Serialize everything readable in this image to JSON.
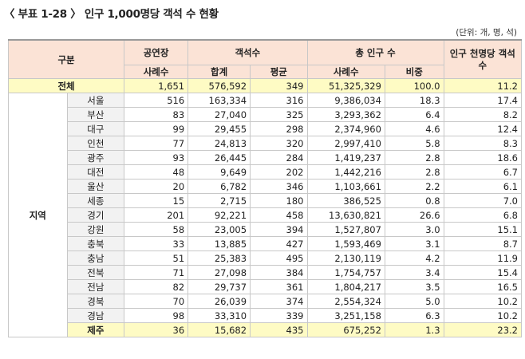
{
  "title": "〈 부표 1-28 〉 인구 1,000명당 객석 수 현황",
  "unit_note": "(단위: 개, 명, 석)",
  "headers": {
    "category": "구분",
    "venues": "공연장",
    "seats": "객석수",
    "population": "총 인구 수",
    "per_thousand": "인구 천명당 객석수",
    "cases": "사례수",
    "total": "합계",
    "average": "평균",
    "pop_cases": "사례수",
    "share": "비중"
  },
  "total_row": {
    "label": "전체",
    "venues": "1,651",
    "seats_total": "576,592",
    "seats_avg": "349",
    "population": "51,325,329",
    "share": "100.0",
    "per_thousand": "11.2"
  },
  "region_group_label": "지역",
  "regions": [
    {
      "name": "서울",
      "venues": "516",
      "seats_total": "163,334",
      "seats_avg": "316",
      "population": "9,386,034",
      "share": "18.3",
      "per_thousand": "17.4"
    },
    {
      "name": "부산",
      "venues": "83",
      "seats_total": "27,040",
      "seats_avg": "325",
      "population": "3,293,362",
      "share": "6.4",
      "per_thousand": "8.2"
    },
    {
      "name": "대구",
      "venues": "99",
      "seats_total": "29,455",
      "seats_avg": "298",
      "population": "2,374,960",
      "share": "4.6",
      "per_thousand": "12.4"
    },
    {
      "name": "인천",
      "venues": "77",
      "seats_total": "24,813",
      "seats_avg": "320",
      "population": "2,997,410",
      "share": "5.8",
      "per_thousand": "8.3"
    },
    {
      "name": "광주",
      "venues": "93",
      "seats_total": "26,445",
      "seats_avg": "284",
      "population": "1,419,237",
      "share": "2.8",
      "per_thousand": "18.6"
    },
    {
      "name": "대전",
      "venues": "48",
      "seats_total": "9,649",
      "seats_avg": "202",
      "population": "1,442,216",
      "share": "2.8",
      "per_thousand": "6.7"
    },
    {
      "name": "울산",
      "venues": "20",
      "seats_total": "6,782",
      "seats_avg": "346",
      "population": "1,103,661",
      "share": "2.2",
      "per_thousand": "6.1"
    },
    {
      "name": "세종",
      "venues": "15",
      "seats_total": "2,715",
      "seats_avg": "180",
      "population": "386,525",
      "share": "0.8",
      "per_thousand": "7.0"
    },
    {
      "name": "경기",
      "venues": "201",
      "seats_total": "92,221",
      "seats_avg": "458",
      "population": "13,630,821",
      "share": "26.6",
      "per_thousand": "6.8"
    },
    {
      "name": "강원",
      "venues": "58",
      "seats_total": "23,005",
      "seats_avg": "394",
      "population": "1,527,807",
      "share": "3.0",
      "per_thousand": "15.1"
    },
    {
      "name": "충북",
      "venues": "33",
      "seats_total": "13,885",
      "seats_avg": "427",
      "population": "1,593,469",
      "share": "3.1",
      "per_thousand": "8.7"
    },
    {
      "name": "충남",
      "venues": "51",
      "seats_total": "25,383",
      "seats_avg": "495",
      "population": "2,130,119",
      "share": "4.2",
      "per_thousand": "11.9"
    },
    {
      "name": "전북",
      "venues": "71",
      "seats_total": "27,098",
      "seats_avg": "384",
      "population": "1,754,757",
      "share": "3.4",
      "per_thousand": "15.4"
    },
    {
      "name": "전남",
      "venues": "82",
      "seats_total": "29,737",
      "seats_avg": "361",
      "population": "1,804,217",
      "share": "3.5",
      "per_thousand": "16.5"
    },
    {
      "name": "경북",
      "venues": "70",
      "seats_total": "26,039",
      "seats_avg": "374",
      "population": "2,554,324",
      "share": "5.0",
      "per_thousand": "10.2"
    },
    {
      "name": "경남",
      "venues": "98",
      "seats_total": "33,310",
      "seats_avg": "339",
      "population": "3,251,158",
      "share": "6.3",
      "per_thousand": "10.2"
    },
    {
      "name": "제주",
      "venues": "36",
      "seats_total": "15,682",
      "seats_avg": "435",
      "population": "675,252",
      "share": "1.3",
      "per_thousand": "23.2"
    }
  ],
  "highlight_regions": [
    "제주"
  ],
  "colors": {
    "header_bg": "#fbe3d6",
    "highlight_bg": "#fefbc4",
    "region_bg": "#f2f2f2"
  }
}
